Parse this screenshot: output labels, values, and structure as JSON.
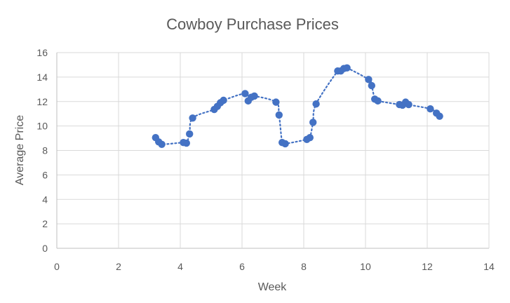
{
  "chart_data": {
    "type": "scatter",
    "title": "Cowboy Purchase Prices",
    "xlabel": "Week",
    "ylabel": "Average Price",
    "xlim": [
      0,
      14
    ],
    "ylim": [
      0,
      16
    ],
    "xticks": [
      0,
      2,
      4,
      6,
      8,
      10,
      12,
      14
    ],
    "yticks": [
      0,
      2,
      4,
      6,
      8,
      10,
      12,
      14,
      16
    ],
    "grid": true,
    "marker_color": "#4472c4",
    "trendline": {
      "style": "dotted",
      "color": "#4472c4"
    },
    "points": [
      {
        "x": 3.2,
        "y": 9.05
      },
      {
        "x": 3.3,
        "y": 8.7
      },
      {
        "x": 3.4,
        "y": 8.5
      },
      {
        "x": 4.1,
        "y": 8.65
      },
      {
        "x": 4.2,
        "y": 8.6
      },
      {
        "x": 4.3,
        "y": 9.35
      },
      {
        "x": 4.4,
        "y": 10.65
      },
      {
        "x": 5.1,
        "y": 11.35
      },
      {
        "x": 5.2,
        "y": 11.6
      },
      {
        "x": 5.3,
        "y": 11.9
      },
      {
        "x": 5.4,
        "y": 12.1
      },
      {
        "x": 6.1,
        "y": 12.65
      },
      {
        "x": 6.2,
        "y": 12.05
      },
      {
        "x": 6.3,
        "y": 12.35
      },
      {
        "x": 6.4,
        "y": 12.45
      },
      {
        "x": 7.1,
        "y": 11.95
      },
      {
        "x": 7.2,
        "y": 10.9
      },
      {
        "x": 7.3,
        "y": 8.65
      },
      {
        "x": 7.4,
        "y": 8.55
      },
      {
        "x": 8.1,
        "y": 8.9
      },
      {
        "x": 8.2,
        "y": 9.05
      },
      {
        "x": 8.3,
        "y": 10.3
      },
      {
        "x": 8.4,
        "y": 11.8
      },
      {
        "x": 9.1,
        "y": 14.5
      },
      {
        "x": 9.2,
        "y": 14.5
      },
      {
        "x": 9.3,
        "y": 14.7
      },
      {
        "x": 9.4,
        "y": 14.75
      },
      {
        "x": 10.1,
        "y": 13.8
      },
      {
        "x": 10.2,
        "y": 13.3
      },
      {
        "x": 10.3,
        "y": 12.2
      },
      {
        "x": 10.4,
        "y": 12.05
      },
      {
        "x": 11.1,
        "y": 11.75
      },
      {
        "x": 11.2,
        "y": 11.7
      },
      {
        "x": 11.3,
        "y": 11.95
      },
      {
        "x": 11.4,
        "y": 11.75
      },
      {
        "x": 12.1,
        "y": 11.4
      },
      {
        "x": 12.3,
        "y": 11.05
      },
      {
        "x": 12.4,
        "y": 10.8
      }
    ]
  }
}
